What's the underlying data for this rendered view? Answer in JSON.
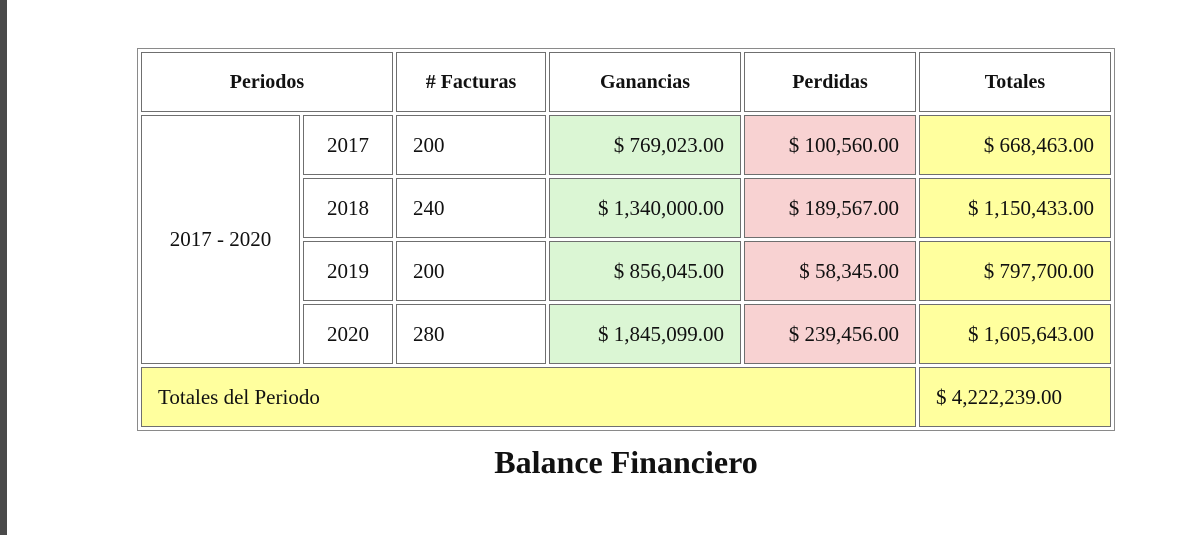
{
  "table": {
    "headers": {
      "periodos": "Periodos",
      "facturas": "# Facturas",
      "ganancias": "Ganancias",
      "perdidas": "Perdidas",
      "totales": "Totales"
    },
    "range_label": "2017 - 2020",
    "rows": [
      {
        "year": "2017",
        "facturas": "200",
        "ganancias": "$ 769,023.00",
        "perdidas": "$ 100,560.00",
        "total": "$ 668,463.00"
      },
      {
        "year": "2018",
        "facturas": "240",
        "ganancias": "$ 1,340,000.00",
        "perdidas": "$ 189,567.00",
        "total": "$ 1,150,433.00"
      },
      {
        "year": "2019",
        "facturas": "200",
        "ganancias": "$ 856,045.00",
        "perdidas": "$ 58,345.00",
        "total": "$ 797,700.00"
      },
      {
        "year": "2020",
        "facturas": "280",
        "ganancias": "$ 1,845,099.00",
        "perdidas": "$ 239,456.00",
        "total": "$ 1,605,643.00"
      }
    ],
    "footer": {
      "label": "Totales del Periodo",
      "value": "$ 4,222,239.00"
    },
    "caption": "Balance Financiero"
  },
  "colors": {
    "ganancia_bg": "#dbf6d4",
    "perdida_bg": "#f8d2d2",
    "total_bg": "#ffff9e"
  }
}
